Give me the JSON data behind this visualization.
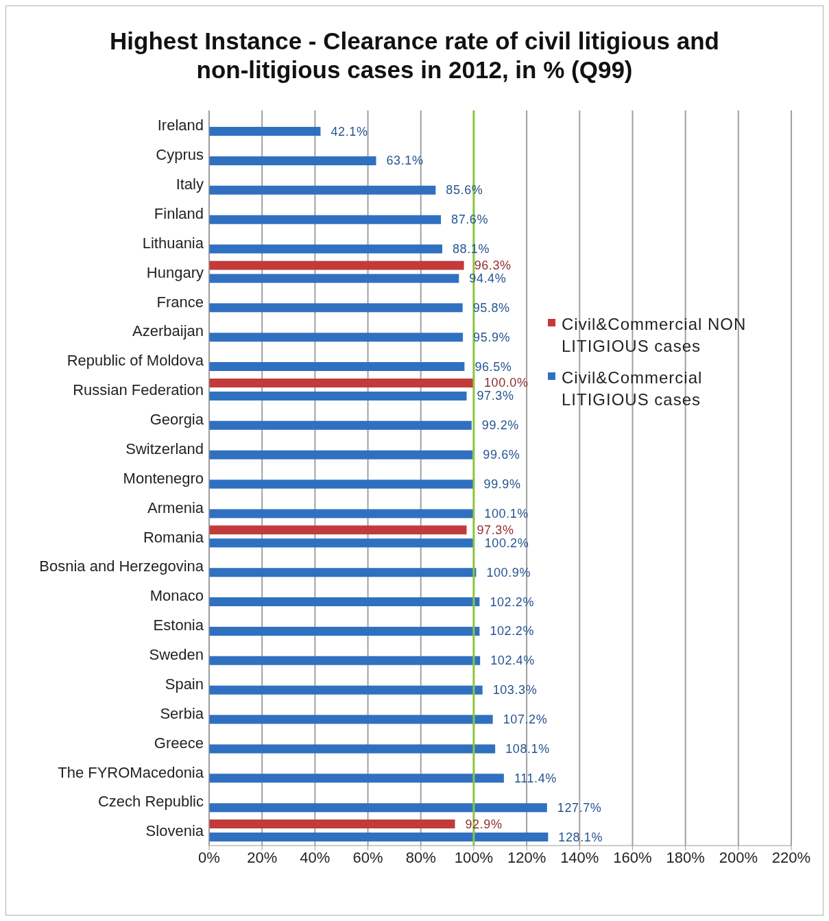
{
  "chart_data": {
    "type": "bar",
    "orientation": "horizontal",
    "title": "Highest Instance - Clearance rate of civil litigious and non-litigious cases in 2012, in % (Q99)",
    "categories": [
      "Ireland",
      "Cyprus",
      "Italy",
      "Finland",
      "Lithuania",
      "Hungary",
      "France",
      "Azerbaijan",
      "Republic of Moldova",
      "Russian Federation",
      "Georgia",
      "Switzerland",
      "Montenegro",
      "Armenia",
      "Romania",
      "Bosnia and Herzegovina",
      "Monaco",
      "Estonia",
      "Sweden",
      "Spain",
      "Serbia",
      "Greece",
      "The FYROMacedonia",
      "Czech Republic",
      "Slovenia"
    ],
    "series": [
      {
        "name": "Civil&Commercial NON LITIGIOUS cases",
        "color": "#c23a3a",
        "values": [
          null,
          null,
          null,
          null,
          null,
          96.3,
          null,
          null,
          null,
          100.0,
          null,
          null,
          null,
          null,
          97.3,
          null,
          null,
          null,
          null,
          null,
          null,
          null,
          null,
          null,
          92.9
        ],
        "value_labels": [
          null,
          null,
          null,
          null,
          null,
          "96.3%",
          null,
          null,
          null,
          "100.0%",
          null,
          null,
          null,
          null,
          "97.3%",
          null,
          null,
          null,
          null,
          null,
          null,
          null,
          null,
          null,
          "92.9%"
        ]
      },
      {
        "name": "Civil&Commercial LITIGIOUS cases",
        "color": "#3070c0",
        "values": [
          42.1,
          63.1,
          85.6,
          87.6,
          88.1,
          94.4,
          95.8,
          95.9,
          96.5,
          97.3,
          99.2,
          99.6,
          99.9,
          100.1,
          100.2,
          100.9,
          102.2,
          102.2,
          102.4,
          103.3,
          107.2,
          108.1,
          111.4,
          127.7,
          128.1
        ],
        "value_labels": [
          "42.1%",
          "63.1%",
          "85.6%",
          "87.6%",
          "88.1%",
          "94.4%",
          "95.8%",
          "95.9%",
          "96.5%",
          "97.3%",
          "99.2%",
          "99.6%",
          "99.9%",
          "100.1%",
          "100.2%",
          "100.9%",
          "102.2%",
          "102.2%",
          "102.4%",
          "103.3%",
          "107.2%",
          "108.1%",
          "111.4%",
          "127.7%",
          "128.1%"
        ]
      }
    ],
    "xlim": [
      0,
      220
    ],
    "xticks": [
      {
        "value": 0,
        "label": "0%"
      },
      {
        "value": 20,
        "label": "20%"
      },
      {
        "value": 40,
        "label": "40%"
      },
      {
        "value": 60,
        "label": "60%"
      },
      {
        "value": 80,
        "label": "80%"
      },
      {
        "value": 100,
        "label": "100%"
      },
      {
        "value": 120,
        "label": "120%"
      },
      {
        "value": 140,
        "label": "140%"
      },
      {
        "value": 160,
        "label": "160%"
      },
      {
        "value": 180,
        "label": "180%"
      },
      {
        "value": 200,
        "label": "200%"
      },
      {
        "value": 220,
        "label": "220%"
      }
    ],
    "grid": "x",
    "legend": "right",
    "ref_lines": [
      {
        "axis": "x",
        "value": 100,
        "color": "#8cc63f"
      }
    ]
  }
}
